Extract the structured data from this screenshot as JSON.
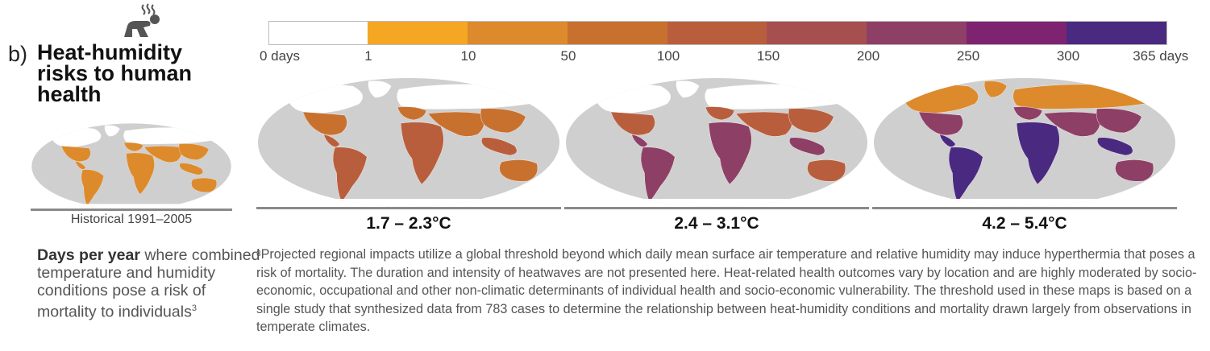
{
  "panel": {
    "letter": "b)",
    "title": "Heat-humidity risks to human health",
    "icon": "person-sweating-icon"
  },
  "legend": {
    "colors": [
      "#ffffff",
      "#f5a623",
      "#dd8a2c",
      "#c8712f",
      "#b95e3c",
      "#a5504f",
      "#8e3f65",
      "#7d2370",
      "#4a2a80"
    ],
    "ticks": [
      "0 days",
      "1",
      "10",
      "50",
      "100",
      "150",
      "200",
      "250",
      "300",
      "365 days"
    ]
  },
  "maps": {
    "historical": {
      "label": "Historical 1991–2005",
      "intensity": 0.2
    },
    "scenarios": [
      {
        "label": "1.7 – 2.3°C",
        "intensity": 0.45
      },
      {
        "label": "2.4 – 3.1°C",
        "intensity": 0.65
      },
      {
        "label": "4.2 – 5.4°C",
        "intensity": 0.95
      }
    ]
  },
  "description": {
    "bold": "Days per year",
    "rest": " where combined temperature and humidity conditions pose a risk of mortality to individuals",
    "sup": "3"
  },
  "footnote": {
    "sup": "3",
    "text": "Projected regional impacts utilize a global threshold beyond which daily mean surface air temperature and relative humidity may induce hyperthermia that poses a risk of mortality. The duration and intensity of heatwaves are not presented here. Heat-related health outcomes vary by location and are highly moderated by socio-economic, occupational and other non-climatic determinants of individual health and socio-economic vulnerability. The threshold used in these maps is based on a single study that synthesized data from 783 cases to determine the relationship between heat-humidity conditions and mortality drawn largely from observations in temperate climates."
  }
}
